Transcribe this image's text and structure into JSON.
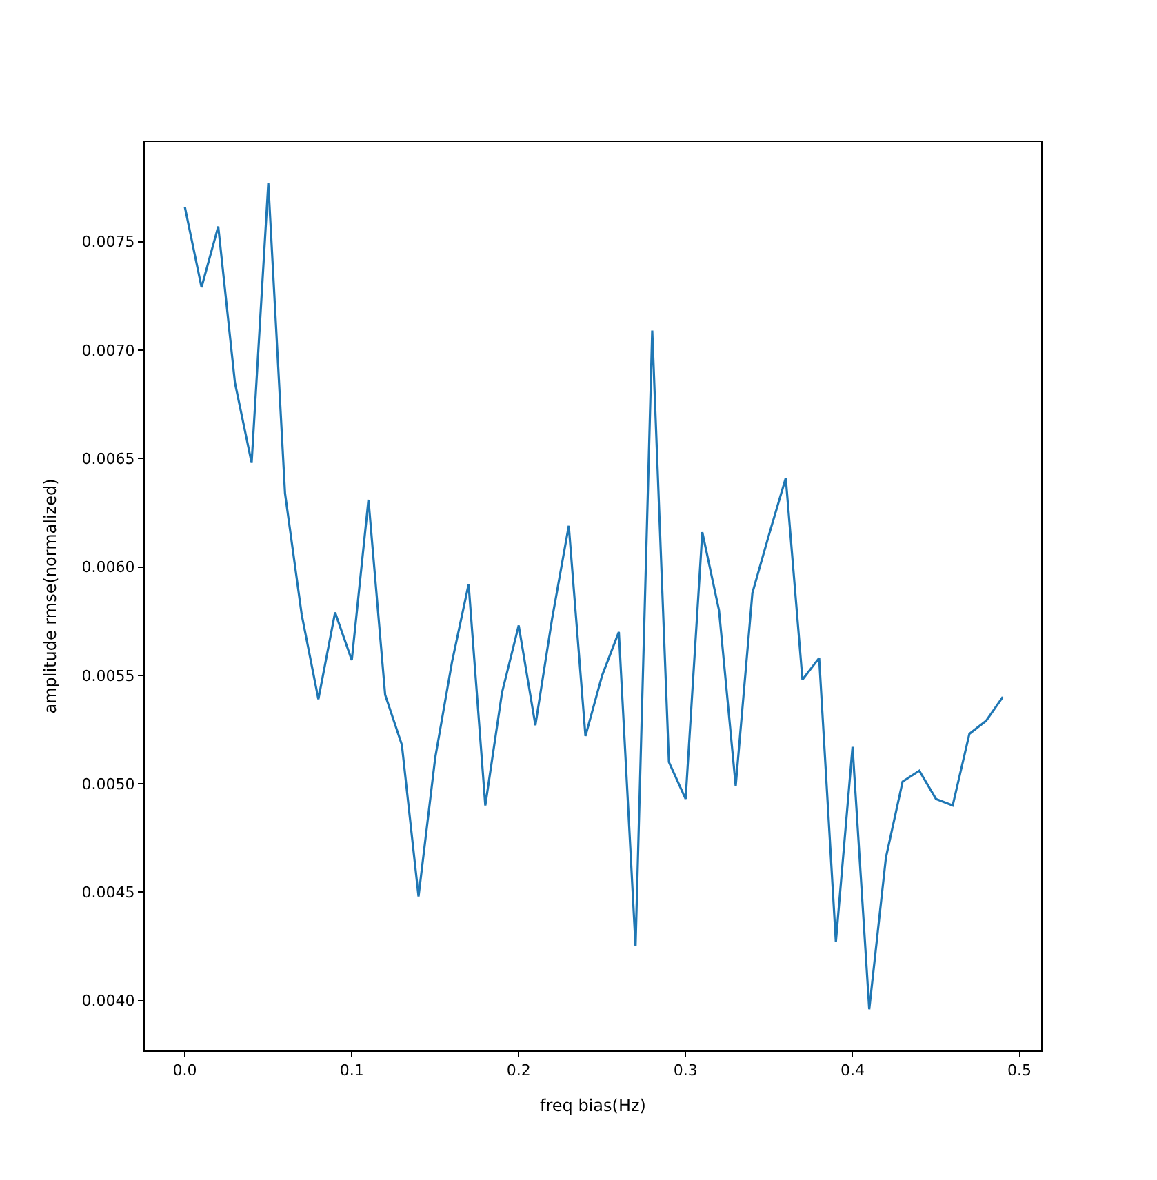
{
  "chart_data": {
    "type": "line",
    "xlabel": "freq bias(Hz)",
    "ylabel": "amplitude rmse(normalized)",
    "x": [
      0.0,
      0.01,
      0.02,
      0.03,
      0.04,
      0.05,
      0.06,
      0.07,
      0.08,
      0.09,
      0.1,
      0.11,
      0.12,
      0.13,
      0.14,
      0.15,
      0.16,
      0.17,
      0.18,
      0.19,
      0.2,
      0.21,
      0.22,
      0.23,
      0.24,
      0.25,
      0.26,
      0.27,
      0.28,
      0.29,
      0.3,
      0.31,
      0.32,
      0.33,
      0.34,
      0.35,
      0.36,
      0.37,
      0.38,
      0.39,
      0.4,
      0.41,
      0.42,
      0.43,
      0.44,
      0.45,
      0.46,
      0.47,
      0.48,
      0.49
    ],
    "series": [
      {
        "color": "#1f77b4",
        "values": [
          0.00766,
          0.00729,
          0.00757,
          0.00685,
          0.00648,
          0.00777,
          0.00634,
          0.00578,
          0.00539,
          0.00579,
          0.00557,
          0.00631,
          0.00541,
          0.00518,
          0.00448,
          0.00512,
          0.00556,
          0.00592,
          0.0049,
          0.00542,
          0.00573,
          0.00527,
          0.00576,
          0.00619,
          0.00522,
          0.0055,
          0.0057,
          0.00425,
          0.00709,
          0.0051,
          0.00493,
          0.00616,
          0.0058,
          0.00499,
          0.00588,
          0.00615,
          0.00641,
          0.00548,
          0.00558,
          0.00427,
          0.00517,
          0.00396,
          0.00466,
          0.00501,
          0.00506,
          0.00493,
          0.0049,
          0.00523,
          0.00529,
          0.0054
        ]
      }
    ],
    "xlim": [
      -0.024,
      0.513
    ],
    "ylim": [
      0.00377,
      0.00796
    ],
    "xticks": [
      {
        "value": 0.0,
        "label": "0.0"
      },
      0.1,
      0.2,
      0.3,
      0.4,
      0.5
    ],
    "yticks": [
      {
        "value": 0.004,
        "label": "0.0040"
      },
      0.0045,
      {
        "value": 0.005,
        "label": "0.0050"
      },
      0.0055,
      {
        "value": 0.006,
        "label": "0.0060"
      },
      0.0065,
      {
        "value": 0.007,
        "label": "0.0070"
      },
      0.0075
    ],
    "line_style": "solid",
    "marker": "none"
  }
}
